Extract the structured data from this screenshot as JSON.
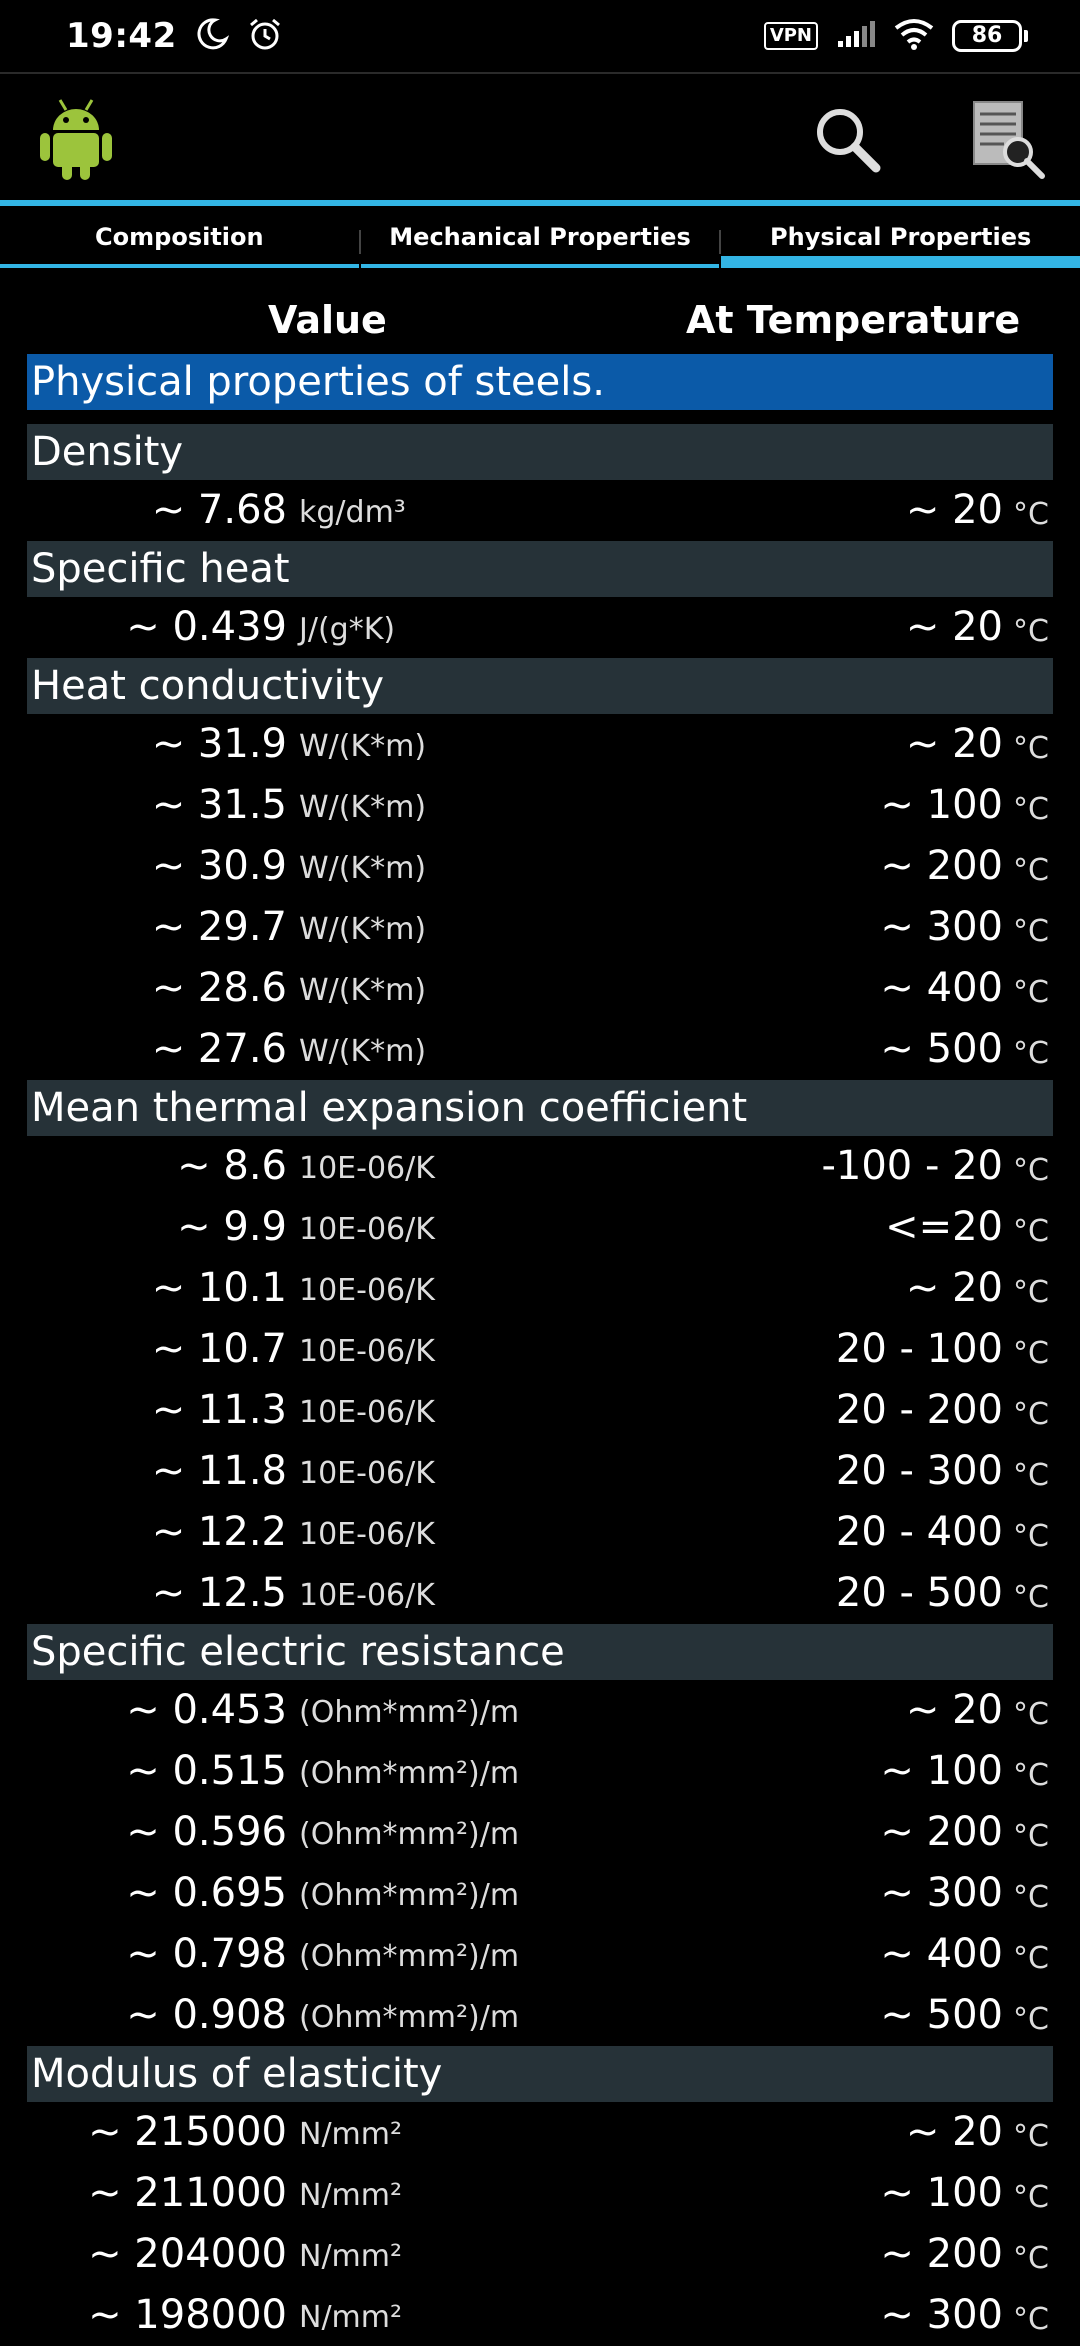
{
  "status_bar": {
    "time": "19:42",
    "vpn": "VPN",
    "battery": "86"
  },
  "tabs": [
    {
      "label": "Composition",
      "active": false
    },
    {
      "label": "Mechanical Properties",
      "active": false
    },
    {
      "label": "Physical Properties",
      "active": true
    }
  ],
  "table_header": {
    "value": "Value",
    "temperature": "At Temperature"
  },
  "title": "Physical properties of steels.",
  "sections": [
    {
      "name": "Density",
      "rows": [
        {
          "value": "~ 7.68",
          "unit": "kg/dm³",
          "temp": "~ 20",
          "temp_unit": "°C"
        }
      ]
    },
    {
      "name": "Specific heat",
      "rows": [
        {
          "value": "~ 0.439",
          "unit": "J/(g*K)",
          "temp": "~ 20",
          "temp_unit": "°C"
        }
      ]
    },
    {
      "name": "Heat conductivity",
      "rows": [
        {
          "value": "~ 31.9",
          "unit": "W/(K*m)",
          "temp": "~ 20",
          "temp_unit": "°C"
        },
        {
          "value": "~ 31.5",
          "unit": "W/(K*m)",
          "temp": "~ 100",
          "temp_unit": "°C"
        },
        {
          "value": "~ 30.9",
          "unit": "W/(K*m)",
          "temp": "~ 200",
          "temp_unit": "°C"
        },
        {
          "value": "~ 29.7",
          "unit": "W/(K*m)",
          "temp": "~ 300",
          "temp_unit": "°C"
        },
        {
          "value": "~ 28.6",
          "unit": "W/(K*m)",
          "temp": "~ 400",
          "temp_unit": "°C"
        },
        {
          "value": "~ 27.6",
          "unit": "W/(K*m)",
          "temp": "~ 500",
          "temp_unit": "°C"
        }
      ]
    },
    {
      "name": "Mean thermal expansion coefficient",
      "rows": [
        {
          "value": "~ 8.6",
          "unit": "10E-06/K",
          "temp": "-100 - 20",
          "temp_unit": "°C"
        },
        {
          "value": "~ 9.9",
          "unit": "10E-06/K",
          "temp": "<=20",
          "temp_unit": "°C"
        },
        {
          "value": "~ 10.1",
          "unit": "10E-06/K",
          "temp": "~ 20",
          "temp_unit": "°C"
        },
        {
          "value": "~ 10.7",
          "unit": "10E-06/K",
          "temp": "20 - 100",
          "temp_unit": "°C"
        },
        {
          "value": "~ 11.3",
          "unit": "10E-06/K",
          "temp": "20 - 200",
          "temp_unit": "°C"
        },
        {
          "value": "~ 11.8",
          "unit": "10E-06/K",
          "temp": "20 - 300",
          "temp_unit": "°C"
        },
        {
          "value": "~ 12.2",
          "unit": "10E-06/K",
          "temp": "20 - 400",
          "temp_unit": "°C"
        },
        {
          "value": "~ 12.5",
          "unit": "10E-06/K",
          "temp": "20 - 500",
          "temp_unit": "°C"
        }
      ]
    },
    {
      "name": "Specific electric resistance",
      "rows": [
        {
          "value": "~ 0.453",
          "unit": "(Ohm*mm²)/m",
          "temp": "~ 20",
          "temp_unit": "°C"
        },
        {
          "value": "~ 0.515",
          "unit": "(Ohm*mm²)/m",
          "temp": "~ 100",
          "temp_unit": "°C"
        },
        {
          "value": "~ 0.596",
          "unit": "(Ohm*mm²)/m",
          "temp": "~ 200",
          "temp_unit": "°C"
        },
        {
          "value": "~ 0.695",
          "unit": "(Ohm*mm²)/m",
          "temp": "~ 300",
          "temp_unit": "°C"
        },
        {
          "value": "~ 0.798",
          "unit": "(Ohm*mm²)/m",
          "temp": "~ 400",
          "temp_unit": "°C"
        },
        {
          "value": "~ 0.908",
          "unit": "(Ohm*mm²)/m",
          "temp": "~ 500",
          "temp_unit": "°C"
        }
      ]
    },
    {
      "name": "Modulus of elasticity",
      "rows": [
        {
          "value": "~ 215000",
          "unit": "N/mm²",
          "temp": "~ 20",
          "temp_unit": "°C"
        },
        {
          "value": "~ 211000",
          "unit": "N/mm²",
          "temp": "~ 100",
          "temp_unit": "°C"
        },
        {
          "value": "~ 204000",
          "unit": "N/mm²",
          "temp": "~ 200",
          "temp_unit": "°C"
        },
        {
          "value": "~ 198000",
          "unit": "N/mm²",
          "temp": "~ 300",
          "temp_unit": "°C"
        }
      ]
    }
  ],
  "colors": {
    "accent": "#33b5e5",
    "title_bg": "#0b5aa8",
    "section_bg": "#263238",
    "android_green": "#9cc43c"
  }
}
